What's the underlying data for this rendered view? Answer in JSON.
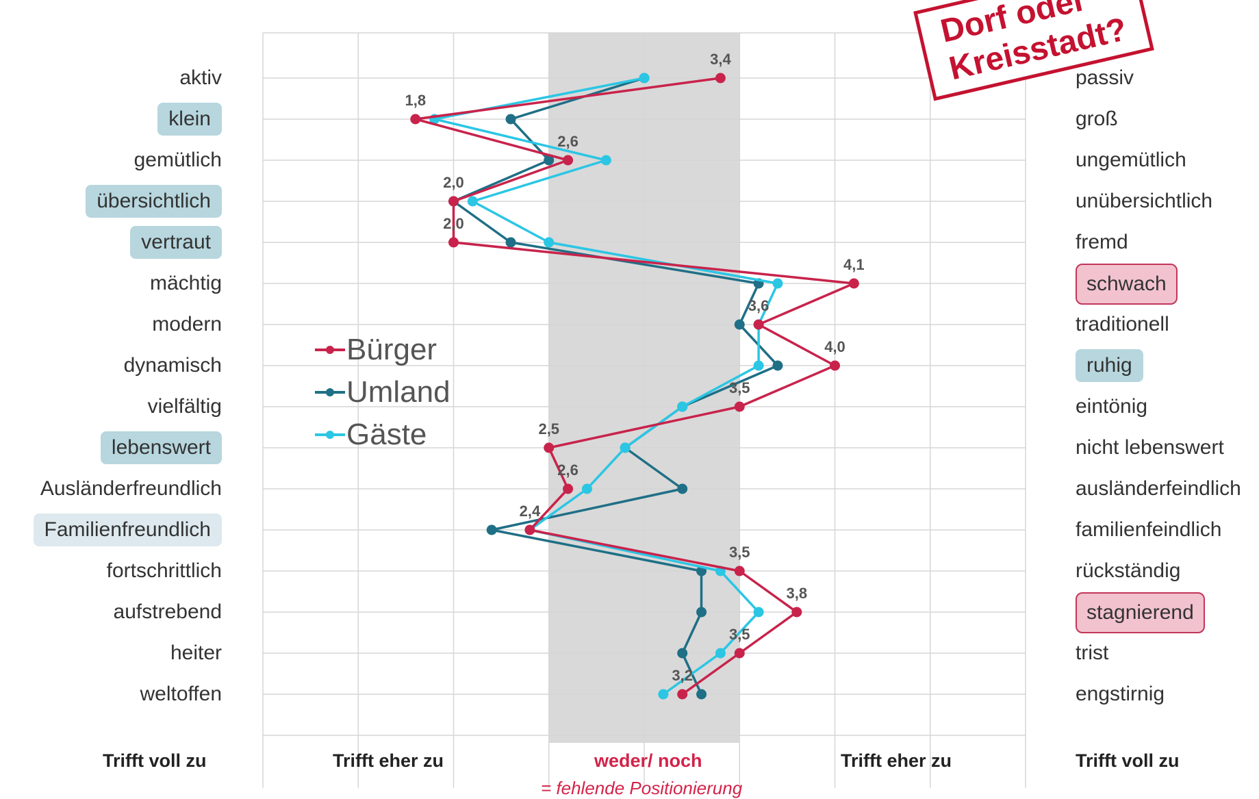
{
  "chart_data": {
    "type": "line",
    "orientation": "horizontal-profile",
    "left_items": [
      "aktiv",
      "klein",
      "gemütlich",
      "übersichtlich",
      "vertraut",
      "mächtig",
      "modern",
      "dynamisch",
      "vielfältig",
      "lebenswert",
      "Ausländerfreundlich",
      "Familienfreundlich",
      "fortschrittlich",
      "aufstrebend",
      "heiter",
      "weltoffen"
    ],
    "right_items": [
      "passiv",
      "groß",
      "ungemütlich",
      "unübersichtlich",
      "fremd",
      "schwach",
      "traditionell",
      "ruhig",
      "eintönig",
      "nicht lebenswert",
      "ausländerfeindlich",
      "familienfeindlich",
      "rückständig",
      "stagnierend",
      "trist",
      "engstirnig"
    ],
    "left_highlight": [
      "none",
      "blue",
      "none",
      "blue",
      "blue",
      "none",
      "none",
      "none",
      "none",
      "blue",
      "none",
      "light",
      "none",
      "none",
      "none",
      "none"
    ],
    "right_highlight": [
      "none",
      "none",
      "none",
      "none",
      "none",
      "pink",
      "none",
      "blue",
      "none",
      "none",
      "none",
      "none",
      "none",
      "pink",
      "none",
      "none"
    ],
    "xlim": [
      1,
      5
    ],
    "neutral_band": [
      2.5,
      3.5
    ],
    "series": [
      {
        "name": "Bürger",
        "color": "#c8234b",
        "values": [
          3.4,
          1.8,
          2.6,
          2.0,
          2.0,
          4.1,
          3.6,
          4.0,
          3.5,
          2.5,
          2.6,
          2.4,
          3.5,
          3.8,
          3.5,
          3.2
        ]
      },
      {
        "name": "Umland",
        "color": "#1f6f86",
        "values": [
          3.0,
          2.3,
          2.5,
          2.0,
          2.3,
          3.6,
          3.5,
          3.7,
          3.2,
          2.9,
          3.2,
          2.2,
          3.3,
          3.3,
          3.2,
          3.3
        ]
      },
      {
        "name": "Gäste",
        "color": "#2bc6e4",
        "values": [
          3.0,
          1.9,
          2.8,
          2.1,
          2.5,
          3.7,
          3.6,
          3.6,
          3.2,
          2.9,
          2.7,
          2.4,
          3.4,
          3.6,
          3.4,
          3.1
        ]
      }
    ],
    "data_labels": [
      {
        "row": 0,
        "text": "3,4"
      },
      {
        "row": 1,
        "text": "1,8"
      },
      {
        "row": 2,
        "text": "2,6"
      },
      {
        "row": 3,
        "text": "2,0"
      },
      {
        "row": 4,
        "text": "2,0"
      },
      {
        "row": 5,
        "text": "4,1"
      },
      {
        "row": 6,
        "text": "3,6"
      },
      {
        "row": 7,
        "text": "4,0"
      },
      {
        "row": 8,
        "text": "3,5"
      },
      {
        "row": 9,
        "text": "2,5"
      },
      {
        "row": 10,
        "text": "2,6"
      },
      {
        "row": 11,
        "text": "2,4"
      },
      {
        "row": 12,
        "text": "3,5"
      },
      {
        "row": 13,
        "text": "3,8"
      },
      {
        "row": 14,
        "text": "3,5"
      },
      {
        "row": 15,
        "text": "3,2"
      }
    ],
    "axis_labels": {
      "left_end": "Trifft voll zu",
      "left_mid": "Trifft eher zu",
      "center": "weder/ noch",
      "center_sub": "= fehlende Positionierung",
      "right_mid": "Trifft eher zu",
      "right_end": "Trifft voll zu"
    },
    "legend_position": "left-middle",
    "grid": true
  },
  "stamp": {
    "line1": "Dorf oder",
    "line2": "Kreisstadt?"
  }
}
